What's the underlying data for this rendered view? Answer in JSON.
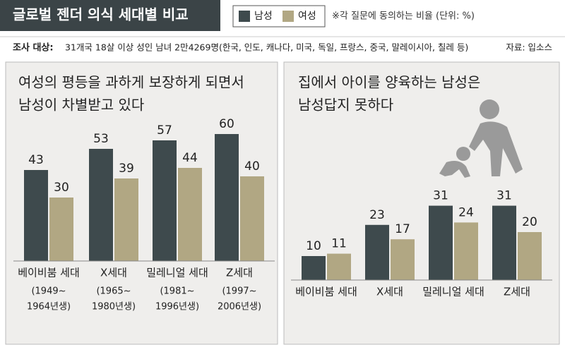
{
  "header": {
    "title": "글로벌 젠더 의식 세대별 비교",
    "note": "※각 질문에 동의하는 비율 (단위: %)",
    "survey_label": "조사 대상:",
    "survey_text": "31개국 18살 이상 성인 남녀 2만4269명(한국, 인도, 캐나다, 미국, 독일, 프랑스, 중국, 말레이시아, 칠레 등)",
    "source": "자료: 입소스"
  },
  "legend": [
    {
      "name": "남성",
      "color": "#3e4a4d"
    },
    {
      "name": "여성",
      "color": "#b1a783"
    }
  ],
  "chart_data": [
    {
      "type": "bar",
      "title": [
        "여성의 평등을 과하게 보장하게 되면서",
        "남성이 차별받고 있다"
      ],
      "categories": [
        "베이비붐 세대",
        "X세대",
        "밀레니얼 세대",
        "Z세대"
      ],
      "category_notes": [
        [
          "(1949~",
          "1964년생)"
        ],
        [
          "(1965~",
          "1980년생)"
        ],
        [
          "(1981~",
          "1996년생)"
        ],
        [
          "(1997~",
          "2006년생)"
        ]
      ],
      "series": [
        {
          "values": [
            43,
            53,
            57,
            60
          ]
        },
        {
          "values": [
            30,
            39,
            44,
            40
          ]
        }
      ]
    },
    {
      "type": "bar",
      "title": [
        "집에서 아이를 양육하는 남성은",
        "남성답지 못하다"
      ],
      "categories": [
        "베이비붐 세대",
        "X세대",
        "밀레니얼 세대",
        "Z세대"
      ],
      "series": [
        {
          "values": [
            10,
            23,
            31,
            31
          ]
        },
        {
          "values": [
            11,
            17,
            24,
            20
          ]
        }
      ]
    }
  ]
}
